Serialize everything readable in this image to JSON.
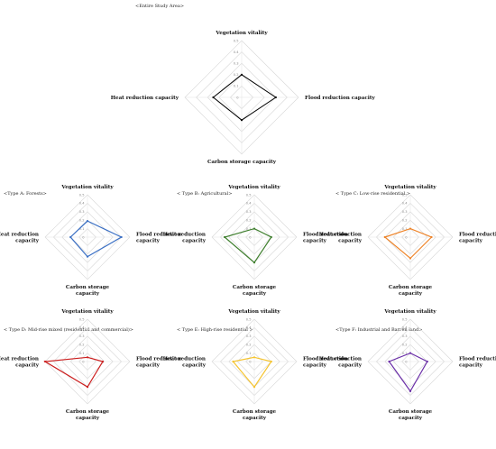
{
  "chart_data": [
    {
      "type": "radar",
      "title": "<Entire Study Area>",
      "axes": [
        "Vegetation vitality",
        "Flood reduction capacity",
        "Carbon storage capacity",
        "Heat reduction capacity"
      ],
      "axis_label_lines": [
        [
          "Vegetation vitality"
        ],
        [
          "Flood reduction capacity"
        ],
        [
          "Carbon storage capacity"
        ],
        [
          "Heat reduction capacity"
        ]
      ],
      "ticks": [
        0,
        0.1,
        0.2,
        0.3,
        0.4,
        0.5
      ],
      "tick_labels": [
        "0",
        "0.1",
        "0.2",
        "0.3",
        "0.4",
        "0.5"
      ],
      "rlim": [
        0,
        0.5
      ],
      "values": [
        0.2,
        0.3,
        0.2,
        0.25
      ],
      "color": "#000000"
    },
    {
      "type": "radar",
      "title": "<Type A: Forests>",
      "axes": [
        "Vegetation vitality",
        "Flood reduction capacity",
        "Carbon storage capacity",
        "Heat reduction capacity"
      ],
      "axis_label_lines": [
        [
          "Vegetation vitality"
        ],
        [
          "Flood reduction",
          "capacity"
        ],
        [
          "Carbon storage",
          "capacity"
        ],
        [
          "Heat reduction",
          "capacity"
        ]
      ],
      "ticks": [
        0,
        0.1,
        0.2,
        0.3,
        0.4,
        0.5
      ],
      "tick_labels": [
        "0",
        "0.1",
        "0.2",
        "0.3",
        "0.4",
        "0.5"
      ],
      "rlim": [
        0,
        0.5
      ],
      "values": [
        0.19,
        0.4,
        0.23,
        0.2
      ],
      "color": "#3a6fc4"
    },
    {
      "type": "radar",
      "title": "< Type B: Agricultural>",
      "axes": [
        "Vegetation vitality",
        "Flood reduction capacity",
        "Carbon storage capacity",
        "Heat reduction capacity"
      ],
      "axis_label_lines": [
        [
          "Vegetation vitality"
        ],
        [
          "Flood reduction",
          "capacity"
        ],
        [
          "Carbon storage",
          "capacity"
        ],
        [
          "Heat reduction",
          "capacity"
        ]
      ],
      "ticks": [
        0,
        0.1,
        0.2,
        0.3,
        0.4,
        0.5
      ],
      "tick_labels": [
        "0",
        "0.1",
        "0.2",
        "0.3",
        "0.4",
        "0.5"
      ],
      "rlim": [
        0,
        0.5
      ],
      "values": [
        0.1,
        0.2,
        0.3,
        0.35
      ],
      "color": "#3f7f2e"
    },
    {
      "type": "radar",
      "title": "< Type C: Low-rise residential >",
      "axes": [
        "Vegetation vitality",
        "Flood reduction capacity",
        "Carbon storage capacity",
        "Heat reduction capacity"
      ],
      "axis_label_lines": [
        [
          "Vegetation vitality"
        ],
        [
          "Flood reduction",
          "capacity"
        ],
        [
          "Carbon storage",
          "capacity"
        ],
        [
          "Heat reduction",
          "capacity"
        ]
      ],
      "ticks": [
        0,
        0.1,
        0.2,
        0.3,
        0.4,
        0.5
      ],
      "tick_labels": [
        "0",
        "0.1",
        "0.2",
        "0.3",
        "0.4",
        "0.5"
      ],
      "rlim": [
        0,
        0.5
      ],
      "values": [
        0.1,
        0.25,
        0.25,
        0.3
      ],
      "color": "#ee8429"
    },
    {
      "type": "radar",
      "title": "< Type D: Mid-rise mixed (residential and commercial)>",
      "axes": [
        "Vegetation vitality",
        "Flood reduction capacity",
        "Carbon storage capacity",
        "Heat reduction capacity"
      ],
      "axis_label_lines": [
        [
          "Vegetation vitality"
        ],
        [
          "Flood reduction",
          "capacity"
        ],
        [
          "Carbon storage",
          "capacity"
        ],
        [
          "Heat reduction",
          "capacity"
        ]
      ],
      "ticks": [
        0,
        0.1,
        0.2,
        0.3,
        0.4,
        0.5
      ],
      "tick_labels": [
        "0",
        "0.1",
        "0.2",
        "0.3",
        "0.4",
        "0.5"
      ],
      "rlim": [
        0,
        0.5
      ],
      "values": [
        0.05,
        0.18,
        0.3,
        0.5
      ],
      "color": "#cc1f1f"
    },
    {
      "type": "radar",
      "title": "< Type E: High-rise residential >",
      "axes": [
        "Vegetation vitality",
        "Flood reduction capacity",
        "Carbon storage capacity",
        "Heat reduction capacity"
      ],
      "axis_label_lines": [
        [
          "Vegetation vitality"
        ],
        [
          "Flood reduction",
          "capacity"
        ],
        [
          "Carbon storage",
          "capacity"
        ],
        [
          "Heat reduction",
          "capacity"
        ]
      ],
      "ticks": [
        0,
        0.1,
        0.2,
        0.3,
        0.4,
        0.5
      ],
      "tick_labels": [
        "0",
        "0.1",
        "0.2",
        "0.3",
        "0.4",
        "0.5"
      ],
      "rlim": [
        0,
        0.5
      ],
      "values": [
        0.05,
        0.2,
        0.3,
        0.25
      ],
      "color": "#f5c431"
    },
    {
      "type": "radar",
      "title": "<Type F: Industrial and Barren land>",
      "axes": [
        "Vegetation vitality",
        "Flood reduction capacity",
        "Carbon storage capacity",
        "Heat reduction capacity"
      ],
      "axis_label_lines": [
        [
          "Vegetation vitality"
        ],
        [
          "Flood reduction",
          "capacity"
        ],
        [
          "Carbon storage",
          "capacity"
        ],
        [
          "Heat reduction",
          "capacity"
        ]
      ],
      "ticks": [
        0,
        0.1,
        0.2,
        0.3,
        0.4,
        0.5
      ],
      "tick_labels": [
        "0",
        "0.1",
        "0.2",
        "0.3",
        "0.4",
        "0.5"
      ],
      "rlim": [
        0,
        0.5
      ],
      "values": [
        0.1,
        0.2,
        0.35,
        0.25
      ],
      "color": "#6b2fa8"
    }
  ]
}
